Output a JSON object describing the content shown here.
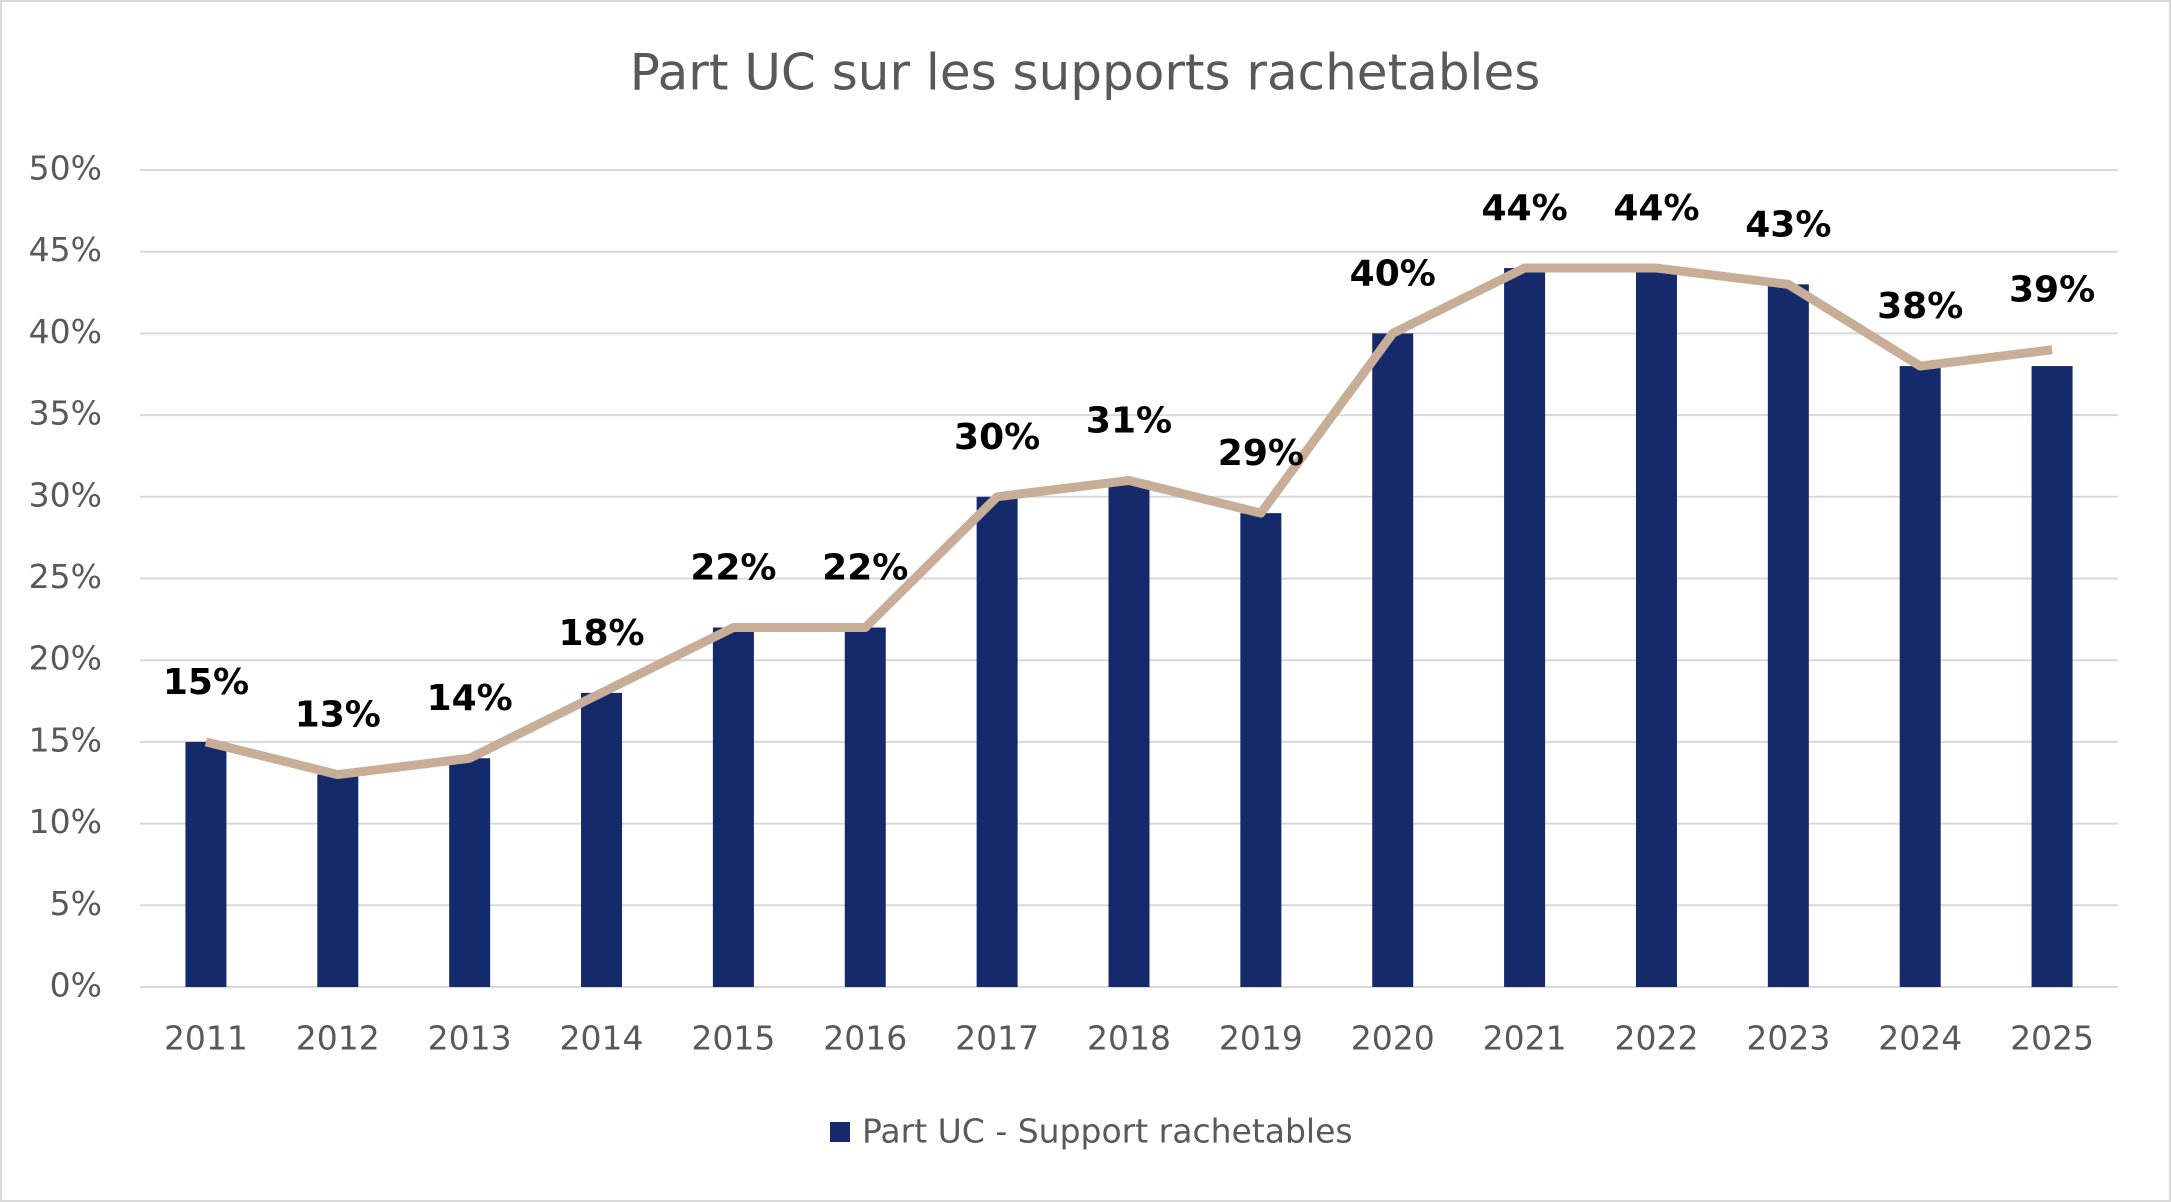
{
  "chart_data": {
    "type": "bar-line",
    "title": "Part UC sur les supports rachetables",
    "categories": [
      "2011",
      "2012",
      "2013",
      "2014",
      "2015",
      "2016",
      "2017",
      "2018",
      "2019",
      "2020",
      "2021",
      "2022",
      "2023",
      "2024",
      "2025"
    ],
    "series": [
      {
        "name": "Part UC - Support rachetables",
        "type": "bar",
        "color": "#152a6b",
        "values": [
          15,
          13,
          14,
          18,
          22,
          22,
          30,
          31,
          29,
          40,
          44,
          44,
          43,
          38,
          38
        ]
      },
      {
        "type": "line",
        "color": "#c8ad97",
        "values": [
          15,
          13,
          14,
          18,
          22,
          22,
          30,
          31,
          29,
          40,
          44,
          44,
          43,
          38,
          39
        ],
        "value_labels": [
          "15%",
          "13%",
          "14%",
          "18%",
          "22%",
          "22%",
          "30%",
          "31%",
          "29%",
          "40%",
          "44%",
          "44%",
          "43%",
          "38%",
          "39%"
        ]
      }
    ],
    "ylim": [
      0,
      50
    ],
    "yticks": [
      {
        "value": 0,
        "label": "0%"
      },
      {
        "value": 5,
        "label": "5%"
      },
      {
        "value": 10,
        "label": "10%"
      },
      {
        "value": 15,
        "label": "15%"
      },
      {
        "value": 20,
        "label": "20%"
      },
      {
        "value": 25,
        "label": "25%"
      },
      {
        "value": 30,
        "label": "30%"
      },
      {
        "value": 35,
        "label": "35%"
      },
      {
        "value": 40,
        "label": "40%"
      },
      {
        "value": 45,
        "label": "45%"
      },
      {
        "value": 50,
        "label": "50%"
      }
    ],
    "grid": true,
    "legend": "bottom"
  }
}
